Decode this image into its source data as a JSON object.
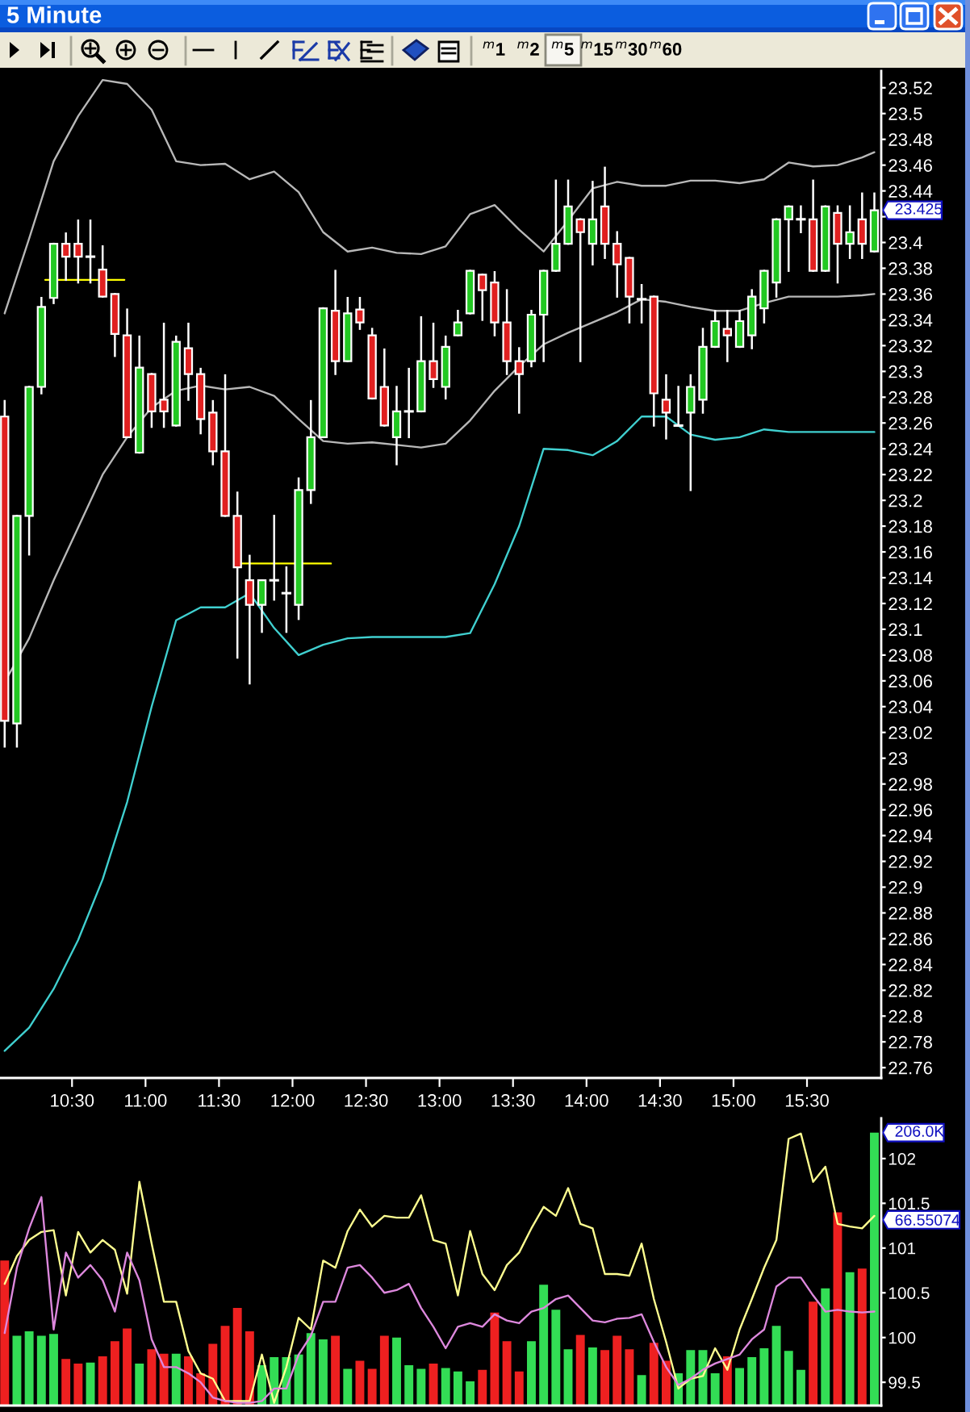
{
  "chart_data": [
    {
      "type": "other",
      "annotations": [
        "$^{m}$1",
        "$^{m}$2",
        "$^{m}$5",
        "$^{m}$15",
        "$^{m}$30",
        "$^{m}$60"
      ]
    },
    {
      "type": "candlestick",
      "title": "5 Minute",
      "x": [
        10.0417,
        10.125,
        10.2083,
        10.2917,
        10.375,
        10.4583,
        10.5417,
        10.625,
        10.7083,
        10.7917,
        10.875,
        10.9583,
        11.0417,
        11.125,
        11.2083,
        11.2917,
        11.375,
        11.4583,
        11.5417,
        11.625,
        11.7083,
        11.7917,
        11.875,
        11.9583,
        12.0417,
        12.125,
        12.2083,
        12.2917,
        12.375,
        12.4583,
        12.5417,
        12.625,
        12.7083,
        12.7917,
        12.875,
        12.9583,
        13.0417,
        13.125,
        13.2083,
        13.2917,
        13.375,
        13.4583,
        13.5417,
        13.625,
        13.7083,
        13.7917,
        13.875,
        13.9583,
        14.0417,
        14.125,
        14.2083,
        14.2917,
        14.375,
        14.4583,
        14.5417,
        14.625,
        14.7083,
        14.7917,
        14.875,
        14.9583,
        15.0417,
        15.125,
        15.2083,
        15.2917,
        15.375,
        15.4583,
        15.5417,
        15.625,
        15.7083,
        15.7917,
        15.875,
        15.9583
      ],
      "ohlc": [
        [
          23.265,
          23.277,
          23.009,
          23.029
        ],
        [
          23.027,
          23.188,
          23.009,
          23.188
        ],
        [
          23.188,
          23.288,
          23.158,
          23.288
        ],
        [
          23.288,
          23.357,
          23.283,
          23.35
        ],
        [
          23.357,
          23.399,
          23.353,
          23.399
        ],
        [
          23.399,
          23.407,
          23.371,
          23.389
        ],
        [
          23.399,
          23.417,
          23.369,
          23.389
        ],
        [
          23.389,
          23.417,
          23.369,
          23.389
        ],
        [
          23.379,
          23.397,
          23.358,
          23.358
        ],
        [
          23.36,
          23.36,
          23.312,
          23.329
        ],
        [
          23.328,
          23.348,
          23.249,
          23.249
        ],
        [
          23.237,
          23.327,
          23.237,
          23.303
        ],
        [
          23.298,
          23.298,
          23.257,
          23.269
        ],
        [
          23.278,
          23.337,
          23.257,
          23.269
        ],
        [
          23.258,
          23.327,
          23.258,
          23.323
        ],
        [
          23.318,
          23.337,
          23.278,
          23.298
        ],
        [
          23.298,
          23.302,
          23.252,
          23.263
        ],
        [
          23.268,
          23.277,
          23.228,
          23.238
        ],
        [
          23.238,
          23.297,
          23.188,
          23.188
        ],
        [
          23.188,
          23.206,
          23.078,
          23.148
        ],
        [
          23.138,
          23.157,
          23.058,
          23.119
        ],
        [
          23.119,
          23.138,
          23.098,
          23.138
        ],
        [
          23.138,
          23.188,
          23.123,
          23.138
        ],
        [
          23.128,
          23.148,
          23.098,
          23.128
        ],
        [
          23.119,
          23.217,
          23.108,
          23.208
        ],
        [
          23.208,
          23.277,
          23.198,
          23.249
        ],
        [
          23.249,
          23.349,
          23.249,
          23.349
        ],
        [
          23.347,
          23.378,
          23.298,
          23.308
        ],
        [
          23.308,
          23.357,
          23.308,
          23.345
        ],
        [
          23.348,
          23.357,
          23.333,
          23.338
        ],
        [
          23.328,
          23.333,
          23.279,
          23.279
        ],
        [
          23.288,
          23.317,
          23.258,
          23.258
        ],
        [
          23.249,
          23.288,
          23.228,
          23.269
        ],
        [
          23.269,
          23.302,
          23.249,
          23.269
        ],
        [
          23.269,
          23.342,
          23.269,
          23.308
        ],
        [
          23.308,
          23.337,
          23.288,
          23.294
        ],
        [
          23.288,
          23.327,
          23.279,
          23.319
        ],
        [
          23.328,
          23.347,
          23.328,
          23.338
        ],
        [
          23.345,
          23.378,
          23.345,
          23.378
        ],
        [
          23.375,
          23.375,
          23.34,
          23.363
        ],
        [
          23.369,
          23.377,
          23.328,
          23.338
        ],
        [
          23.338,
          23.363,
          23.298,
          23.308
        ],
        [
          23.308,
          23.318,
          23.268,
          23.298
        ],
        [
          23.308,
          23.347,
          23.304,
          23.344
        ],
        [
          23.344,
          23.378,
          23.308,
          23.378
        ],
        [
          23.378,
          23.448,
          23.378,
          23.399
        ],
        [
          23.399,
          23.448,
          23.399,
          23.428
        ],
        [
          23.418,
          23.418,
          23.308,
          23.408
        ],
        [
          23.399,
          23.447,
          23.383,
          23.418
        ],
        [
          23.428,
          23.458,
          23.388,
          23.399
        ],
        [
          23.399,
          23.408,
          23.358,
          23.383
        ],
        [
          23.388,
          23.388,
          23.338,
          23.358
        ],
        [
          23.356,
          23.367,
          23.338,
          23.356
        ],
        [
          23.358,
          23.358,
          23.258,
          23.283
        ],
        [
          23.278,
          23.297,
          23.248,
          23.268
        ],
        [
          23.258,
          23.288,
          23.258,
          23.258
        ],
        [
          23.268,
          23.297,
          23.208,
          23.288
        ],
        [
          23.278,
          23.333,
          23.268,
          23.319
        ],
        [
          23.319,
          23.347,
          23.319,
          23.339
        ],
        [
          23.333,
          23.347,
          23.308,
          23.328
        ],
        [
          23.319,
          23.347,
          23.319,
          23.339
        ],
        [
          23.328,
          23.363,
          23.318,
          23.358
        ],
        [
          23.349,
          23.378,
          23.338,
          23.378
        ],
        [
          23.369,
          23.418,
          23.358,
          23.418
        ],
        [
          23.418,
          23.428,
          23.378,
          23.428
        ],
        [
          23.418,
          23.428,
          23.408,
          23.418
        ],
        [
          23.418,
          23.448,
          23.378,
          23.378
        ],
        [
          23.378,
          23.428,
          23.378,
          23.428
        ],
        [
          23.423,
          23.428,
          23.369,
          23.399
        ],
        [
          23.399,
          23.428,
          23.388,
          23.408
        ],
        [
          23.418,
          23.438,
          23.388,
          23.399
        ],
        [
          23.393,
          23.438,
          23.393,
          23.425
        ]
      ],
      "colors": [
        "#e02020",
        "#22c822",
        "#22c822",
        "#22c822",
        "#22c822",
        "#e02020",
        "#e02020",
        "#ffffff",
        "#e02020",
        "#e02020",
        "#e02020",
        "#22c822",
        "#e02020",
        "#e02020",
        "#22c822",
        "#e02020",
        "#e02020",
        "#e02020",
        "#e02020",
        "#e02020",
        "#e02020",
        "#22c822",
        "#ffffff",
        "#ffffff",
        "#22c822",
        "#22c822",
        "#22c822",
        "#e02020",
        "#22c822",
        "#e02020",
        "#e02020",
        "#e02020",
        "#22c822",
        "#ffffff",
        "#22c822",
        "#e02020",
        "#22c822",
        "#22c822",
        "#22c822",
        "#e02020",
        "#e02020",
        "#e02020",
        "#e02020",
        "#22c822",
        "#22c822",
        "#22c822",
        "#22c822",
        "#e02020",
        "#22c822",
        "#e02020",
        "#e02020",
        "#e02020",
        "#ffffff",
        "#e02020",
        "#e02020",
        "#ffffff",
        "#22c822",
        "#22c822",
        "#22c822",
        "#e02020",
        "#22c822",
        "#22c822",
        "#22c822",
        "#22c822",
        "#22c822",
        "#ffffff",
        "#e02020",
        "#22c822",
        "#e02020",
        "#22c822",
        "#e02020",
        "#22c822"
      ],
      "series": [
        {
          "type": "line",
          "color": "#b8b8b8",
          "x": [
            10.0417,
            10.2083,
            10.375,
            10.5417,
            10.7083,
            10.875,
            11.0417,
            11.2083,
            11.375,
            11.5417,
            11.7083,
            11.875,
            12.0417,
            12.2083,
            12.375,
            12.5417,
            12.7083,
            12.875,
            13.0417,
            13.2083,
            13.375,
            13.5417,
            13.7083,
            13.875,
            14.0417,
            14.2083,
            14.375,
            14.5417,
            14.7083,
            14.875,
            15.0417,
            15.2083,
            15.375,
            15.5417,
            15.7083,
            15.875,
            15.9583
          ],
          "values": [
            23.345,
            23.403,
            23.463,
            23.498,
            23.526,
            23.523,
            23.503,
            23.463,
            23.46,
            23.461,
            23.449,
            23.455,
            23.439,
            23.408,
            23.393,
            23.396,
            23.392,
            23.391,
            23.397,
            23.422,
            23.429,
            23.41,
            23.393,
            23.417,
            23.442,
            23.447,
            23.444,
            23.444,
            23.448,
            23.448,
            23.446,
            23.449,
            23.462,
            23.459,
            23.46,
            23.466,
            23.47
          ]
        },
        {
          "type": "line",
          "color": "#b8b8b8",
          "x": [
            10.0417,
            10.2083,
            10.375,
            10.5417,
            10.7083,
            10.875,
            11.0417,
            11.2083,
            11.375,
            11.5417,
            11.7083,
            11.875,
            12.0417,
            12.2083,
            12.375,
            12.5417,
            12.7083,
            12.875,
            13.0417,
            13.2083,
            13.375,
            13.5417,
            13.7083,
            13.875,
            14.0417,
            14.2083,
            14.375,
            14.5417,
            14.7083,
            14.875,
            15.0417,
            15.2083,
            15.375,
            15.5417,
            15.7083,
            15.875,
            15.9583
          ],
          "values": [
            23.059,
            23.093,
            23.138,
            23.179,
            23.22,
            23.249,
            23.272,
            23.285,
            23.289,
            23.286,
            23.288,
            23.281,
            23.263,
            23.246,
            23.244,
            23.245,
            23.243,
            23.241,
            23.244,
            23.262,
            23.285,
            23.304,
            23.321,
            23.33,
            23.338,
            23.346,
            23.356,
            23.354,
            23.35,
            23.347,
            23.347,
            23.353,
            23.358,
            23.358,
            23.358,
            23.359,
            23.36
          ]
        },
        {
          "type": "line",
          "color": "#40d0d0",
          "x": [
            10.0417,
            10.2083,
            10.375,
            10.5417,
            10.7083,
            10.875,
            11.0417,
            11.2083,
            11.375,
            11.5417,
            11.7083,
            11.875,
            12.0417,
            12.2083,
            12.375,
            12.5417,
            12.7083,
            12.875,
            13.0417,
            13.2083,
            13.375,
            13.5417,
            13.7083,
            13.875,
            14.0417,
            14.2083,
            14.375,
            14.5417,
            14.7083,
            14.875,
            15.0417,
            15.2083,
            15.375,
            15.5417,
            15.7083,
            15.875,
            15.9583
          ],
          "values": [
            22.773,
            22.791,
            22.821,
            22.859,
            22.906,
            22.966,
            23.04,
            23.107,
            23.117,
            23.117,
            23.128,
            23.101,
            23.08,
            23.088,
            23.093,
            23.094,
            23.094,
            23.094,
            23.094,
            23.097,
            23.135,
            23.18,
            23.24,
            23.239,
            23.235,
            23.246,
            23.265,
            23.265,
            23.251,
            23.247,
            23.249,
            23.255,
            23.253,
            23.253,
            23.253,
            23.253,
            23.253
          ]
        },
        {
          "type": "line",
          "color": "#ffff00",
          "x": [
            10.318,
            10.856
          ],
          "values": [
            23.371,
            23.371
          ]
        },
        {
          "type": "line",
          "color": "#ffff00",
          "x": [
            11.657,
            12.261
          ],
          "values": [
            23.151,
            23.151
          ]
        }
      ],
      "xlim": [
        10.01,
        16.005
      ],
      "ylim": [
        22.752,
        23.533
      ],
      "xticks": [
        {
          "value": 10.5,
          "label": "10:30"
        },
        {
          "value": 11,
          "label": "11:00"
        },
        {
          "value": 11.5,
          "label": "11:30"
        },
        {
          "value": 12,
          "label": "12:00"
        },
        {
          "value": 12.5,
          "label": "12:30"
        },
        {
          "value": 13,
          "label": "13:00"
        },
        {
          "value": 13.5,
          "label": "13:30"
        },
        {
          "value": 14,
          "label": "14:00"
        },
        {
          "value": 14.5,
          "label": "14:30"
        },
        {
          "value": 15,
          "label": "15:00"
        },
        {
          "value": 15.5,
          "label": "15:30"
        }
      ],
      "yticks": [
        22.76,
        22.78,
        22.8,
        22.82,
        22.84,
        22.86,
        22.88,
        22.9,
        22.92,
        22.94,
        22.96,
        22.98,
        23,
        23.02,
        23.04,
        23.06,
        23.08,
        23.1,
        23.12,
        23.14,
        23.16,
        23.18,
        23.2,
        23.22,
        23.24,
        23.26,
        23.28,
        23.3,
        23.32,
        23.34,
        23.36,
        23.38,
        23.4,
        {
          "value": 23.42,
          "label": null
        },
        23.44,
        23.46,
        23.48,
        23.5,
        23.52
      ],
      "annotations": [
        "23.425"
      ]
    },
    {
      "type": "bar",
      "x": [
        10.0417,
        10.125,
        10.2083,
        10.2917,
        10.375,
        10.4583,
        10.5417,
        10.625,
        10.7083,
        10.7917,
        10.875,
        10.9583,
        11.0417,
        11.125,
        11.2083,
        11.2917,
        11.375,
        11.4583,
        11.5417,
        11.625,
        11.7083,
        11.7917,
        11.875,
        11.9583,
        12.0417,
        12.125,
        12.2083,
        12.2917,
        12.375,
        12.4583,
        12.5417,
        12.625,
        12.7083,
        12.7917,
        12.875,
        12.9583,
        13.0417,
        13.125,
        13.2083,
        13.2917,
        13.375,
        13.4583,
        13.5417,
        13.625,
        13.7083,
        13.7917,
        13.875,
        13.9583,
        14.0417,
        14.125,
        14.2083,
        14.2917,
        14.375,
        14.4583,
        14.5417,
        14.625,
        14.7083,
        14.7917,
        14.875,
        14.9583,
        15.0417,
        15.125,
        15.2083,
        15.2917,
        15.375,
        15.4583,
        15.5417,
        15.625,
        15.7083,
        15.7917,
        15.875,
        15.9583
      ],
      "series": [
        {
          "type": "bar",
          "colors": [
            "#ee2020",
            "#33dd55",
            "#33dd55",
            "#33dd55",
            "#33dd55",
            "#ee2020",
            "#ee2020",
            "#33dd55",
            "#ee2020",
            "#ee2020",
            "#ee2020",
            "#33dd55",
            "#ee2020",
            "#ee2020",
            "#33dd55",
            "#ee2020",
            "#ee2020",
            "#ee2020",
            "#ee2020",
            "#ee2020",
            "#ee2020",
            "#33dd55",
            "#33dd55",
            "#33dd55",
            "#33dd55",
            "#33dd55",
            "#33dd55",
            "#ee2020",
            "#33dd55",
            "#ee2020",
            "#ee2020",
            "#ee2020",
            "#33dd55",
            "#33dd55",
            "#33dd55",
            "#ee2020",
            "#33dd55",
            "#33dd55",
            "#33dd55",
            "#ee2020",
            "#ee2020",
            "#ee2020",
            "#ee2020",
            "#33dd55",
            "#33dd55",
            "#33dd55",
            "#33dd55",
            "#ee2020",
            "#33dd55",
            "#ee2020",
            "#ee2020",
            "#ee2020",
            "#33dd55",
            "#ee2020",
            "#ee2020",
            "#33dd55",
            "#33dd55",
            "#33dd55",
            "#33dd55",
            "#ee2020",
            "#33dd55",
            "#33dd55",
            "#33dd55",
            "#33dd55",
            "#33dd55",
            "#33dd55",
            "#ee2020",
            "#33dd55",
            "#ee2020",
            "#33dd55",
            "#ee2020",
            "#33dd55"
          ],
          "values": [
            100.86,
            100.02,
            100.07,
            100.02,
            100.04,
            99.76,
            99.71,
            99.72,
            99.79,
            99.96,
            100.1,
            99.71,
            99.87,
            99.82,
            99.82,
            99.79,
            99.6,
            99.93,
            100.13,
            100.33,
            100.07,
            99.69,
            99.78,
            99.78,
            99.81,
            100.05,
            99.98,
            100.02,
            99.65,
            99.74,
            99.65,
            100.02,
            100.0,
            99.69,
            99.65,
            99.71,
            99.66,
            99.62,
            99.51,
            99.64,
            100.28,
            99.96,
            99.62,
            99.96,
            100.59,
            100.31,
            99.87,
            100.03,
            99.89,
            99.86,
            100.02,
            99.87,
            99.58,
            99.94,
            99.74,
            99.6,
            99.86,
            99.86,
            99.6,
            99.79,
            99.66,
            99.78,
            99.88,
            100.13,
            99.85,
            99.64,
            100.4,
            100.55,
            101.4,
            100.73,
            100.77,
            102.29
          ]
        },
        {
          "type": "line",
          "color": "#ffff90",
          "values": [
            100.6,
            100.91,
            101.09,
            101.18,
            101.2,
            100.47,
            101.18,
            100.95,
            101.09,
            100.98,
            100.49,
            101.74,
            101.05,
            100.4,
            100.4,
            99.85,
            99.6,
            99.54,
            99.29,
            99.29,
            99.29,
            99.81,
            99.27,
            99.67,
            100.22,
            100.09,
            100.86,
            100.78,
            101.19,
            101.43,
            101.24,
            101.36,
            101.34,
            101.34,
            101.59,
            101.09,
            101.05,
            100.47,
            101.19,
            100.71,
            100.53,
            100.81,
            100.95,
            101.22,
            101.46,
            101.36,
            101.67,
            101.27,
            101.22,
            100.71,
            100.71,
            100.69,
            101.05,
            100.43,
            99.95,
            99.43,
            99.54,
            99.57,
            99.88,
            99.64,
            100.09,
            100.43,
            100.78,
            101.09,
            102.22,
            102.28,
            101.74,
            101.91,
            101.27,
            101.24,
            101.22,
            101.36
          ]
        },
        {
          "type": "line",
          "color": "#dd88dd",
          "values": [
            100.05,
            100.78,
            101.22,
            101.57,
            100.09,
            100.95,
            100.67,
            100.81,
            100.64,
            100.29,
            100.95,
            100.64,
            99.98,
            99.67,
            99.67,
            99.6,
            99.5,
            99.33,
            99.29,
            99.27,
            99.27,
            99.29,
            99.43,
            99.43,
            99.81,
            100.02,
            100.4,
            100.4,
            100.78,
            100.81,
            100.67,
            100.5,
            100.53,
            100.6,
            100.33,
            100.12,
            99.88,
            100.12,
            100.16,
            100.12,
            100.26,
            100.19,
            100.16,
            100.29,
            100.33,
            100.43,
            100.47,
            100.33,
            100.19,
            100.17,
            100.21,
            100.22,
            100.26,
            99.95,
            99.67,
            99.47,
            99.54,
            99.64,
            99.71,
            99.76,
            99.81,
            99.98,
            100.09,
            100.57,
            100.67,
            100.67,
            100.47,
            100.29,
            100.31,
            100.29,
            100.28,
            100.29
          ]
        }
      ],
      "xlim": [
        10.01,
        16.005
      ],
      "ylim": [
        99.24,
        102.45
      ],
      "yticks": [
        99.5,
        100,
        100.5,
        101,
        101.5,
        102
      ],
      "tick_labels": "y",
      "annotations": [
        "206.0K",
        "66.55074"
      ]
    }
  ]
}
